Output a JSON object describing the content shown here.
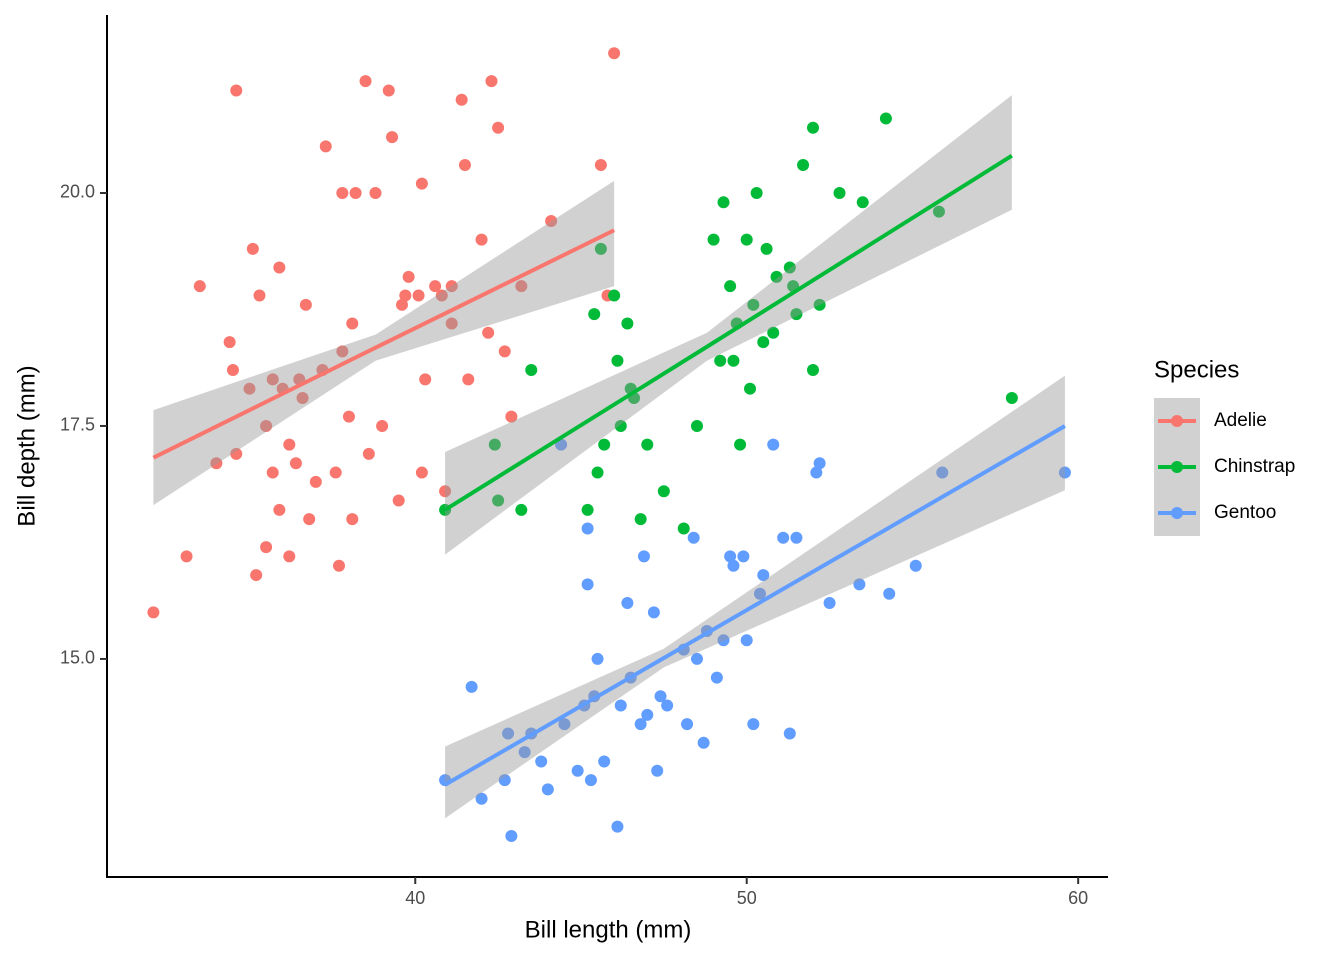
{
  "chart_data": {
    "type": "scatter",
    "x_label": "Bill length (mm)",
    "y_label": "Bill depth (mm)",
    "legend_title": "Species",
    "legend": "right",
    "xlim": [
      30.7,
      60.9
    ],
    "ylim": [
      12.66,
      21.91
    ],
    "xticks": [
      40,
      50,
      60
    ],
    "yticks": [
      {
        "value": 15,
        "label": "15.0"
      },
      {
        "value": 17.5,
        "label": "17.5"
      },
      {
        "value": 20,
        "label": "20.0"
      }
    ],
    "band_color": "#999999",
    "series": [
      {
        "name": "Adelie",
        "color": "#F8766D",
        "x": [
          32.1,
          33.1,
          33.5,
          34.0,
          34.4,
          34.5,
          34.6,
          34.6,
          35.0,
          35.1,
          35.2,
          35.3,
          35.5,
          35.5,
          35.7,
          35.7,
          35.9,
          35.9,
          36.0,
          36.2,
          36.2,
          36.4,
          36.5,
          36.6,
          36.7,
          37.0,
          37.2,
          37.3,
          37.6,
          37.7,
          37.8,
          37.8,
          38.0,
          38.1,
          38.2,
          38.5,
          38.6,
          38.8,
          39.0,
          39.2,
          39.3,
          39.5,
          39.6,
          39.7,
          40.1,
          40.2,
          40.3,
          40.6,
          40.8,
          41.1,
          41.1,
          41.4,
          41.5,
          41.6,
          42.0,
          42.2,
          42.3,
          42.5,
          42.7,
          42.9,
          43.2,
          44.1,
          45.6,
          45.8,
          46.0,
          40.9,
          40.2,
          38.1,
          36.8,
          39.8
        ],
        "y": [
          15.5,
          16.1,
          19.0,
          17.1,
          18.4,
          18.1,
          21.1,
          17.2,
          17.9,
          19.4,
          15.9,
          18.9,
          16.2,
          17.5,
          18.0,
          17.0,
          19.2,
          16.6,
          17.9,
          17.3,
          16.1,
          17.1,
          18.0,
          17.8,
          18.8,
          16.9,
          18.1,
          20.5,
          17.0,
          16.0,
          20.0,
          18.3,
          17.6,
          18.6,
          20.0,
          21.2,
          17.2,
          20.0,
          17.5,
          21.1,
          20.6,
          16.7,
          18.8,
          18.9,
          18.9,
          20.1,
          18.0,
          19.0,
          18.9,
          18.6,
          19.0,
          21.0,
          20.3,
          18.0,
          19.5,
          18.5,
          21.2,
          20.7,
          18.3,
          17.6,
          19.0,
          19.7,
          20.3,
          18.9,
          21.5,
          16.8,
          17.0,
          16.5,
          16.5,
          19.1
        ],
        "fit": {
          "x": [
            32.1,
            38.8,
            46.0
          ],
          "y": [
            17.16,
            18.34,
            19.6
          ],
          "lower": [
            16.65,
            18.2,
            19.0
          ],
          "upper": [
            17.67,
            18.48,
            20.13
          ]
        }
      },
      {
        "name": "Chinstrap",
        "color": "#00BA38",
        "x": [
          40.9,
          42.4,
          42.5,
          43.2,
          43.5,
          45.2,
          45.4,
          45.5,
          45.6,
          45.7,
          46.0,
          46.1,
          46.2,
          46.4,
          46.5,
          46.6,
          46.8,
          47.0,
          47.5,
          48.1,
          48.5,
          49.0,
          49.3,
          49.5,
          49.6,
          49.7,
          49.8,
          50.0,
          50.2,
          50.3,
          50.5,
          50.6,
          50.8,
          50.9,
          51.3,
          51.4,
          51.5,
          51.7,
          52.0,
          52.0,
          52.2,
          52.8,
          53.5,
          54.2,
          55.8,
          58.0,
          49.2,
          50.1
        ],
        "y": [
          16.6,
          17.3,
          16.7,
          16.6,
          18.1,
          16.6,
          18.7,
          17.0,
          19.4,
          17.3,
          18.9,
          18.2,
          17.5,
          18.6,
          17.9,
          17.8,
          16.5,
          17.3,
          16.8,
          16.4,
          17.5,
          19.5,
          19.9,
          19.0,
          18.2,
          18.6,
          17.3,
          19.5,
          18.8,
          20.0,
          18.4,
          19.4,
          18.5,
          19.1,
          19.2,
          19.0,
          18.7,
          20.3,
          18.1,
          20.7,
          18.8,
          20.0,
          19.9,
          20.8,
          19.8,
          17.8,
          18.2,
          17.9
        ],
        "fit": {
          "x": [
            40.9,
            48.8,
            58.0
          ],
          "y": [
            16.6,
            18.35,
            20.4
          ],
          "lower": [
            16.12,
            18.2,
            19.82
          ],
          "upper": [
            17.22,
            18.5,
            21.05
          ]
        }
      },
      {
        "name": "Gentoo",
        "color": "#619CFF",
        "x": [
          40.9,
          41.7,
          42.0,
          42.7,
          42.8,
          42.9,
          43.3,
          43.5,
          43.8,
          44.0,
          44.4,
          44.5,
          44.9,
          45.1,
          45.2,
          45.3,
          45.4,
          45.5,
          45.7,
          46.1,
          46.2,
          46.4,
          46.5,
          46.8,
          47.0,
          47.2,
          47.4,
          47.6,
          48.1,
          48.2,
          48.5,
          48.7,
          49.1,
          49.3,
          49.5,
          49.6,
          49.9,
          50.0,
          50.2,
          50.5,
          50.8,
          51.1,
          51.3,
          51.5,
          52.1,
          52.2,
          52.5,
          53.4,
          54.3,
          55.1,
          55.9,
          59.6,
          48.4,
          47.3,
          46.9,
          45.2,
          50.4,
          48.8
        ],
        "y": [
          13.7,
          14.7,
          13.5,
          13.7,
          14.2,
          13.1,
          14.0,
          14.2,
          13.9,
          13.6,
          17.3,
          14.3,
          13.8,
          14.5,
          15.8,
          13.7,
          14.6,
          15.0,
          13.9,
          13.2,
          14.5,
          15.6,
          14.8,
          14.3,
          14.4,
          15.5,
          14.6,
          14.5,
          15.1,
          14.3,
          15.0,
          14.1,
          14.8,
          15.2,
          16.1,
          16.0,
          16.1,
          15.2,
          14.3,
          15.9,
          17.3,
          16.3,
          14.2,
          16.3,
          17.0,
          17.1,
          15.6,
          15.8,
          15.7,
          16.0,
          17.0,
          17.0,
          16.3,
          13.8,
          16.1,
          16.4,
          15.7,
          15.3
        ],
        "fit": {
          "x": [
            40.9,
            47.5,
            59.6
          ],
          "y": [
            13.65,
            15.01,
            17.5
          ],
          "lower": [
            13.29,
            14.91,
            16.81
          ],
          "upper": [
            14.06,
            15.11,
            18.04
          ]
        }
      }
    ]
  }
}
